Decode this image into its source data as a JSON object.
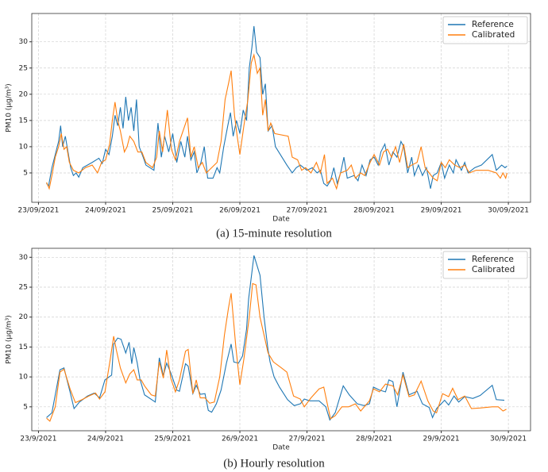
{
  "chart_data": [
    {
      "type": "line",
      "caption": "(a) 15-minute resolution",
      "x_label": "Date",
      "y_label": "PM10 (μg/m³)",
      "xlim": [
        -0.1,
        7.33
      ],
      "ylim": [
        -0.6,
        35.4
      ],
      "xticks": [
        {
          "value": 0,
          "label": "23/09/2021"
        },
        {
          "value": 1,
          "label": "24/09/2021"
        },
        {
          "value": 2,
          "label": "25/09/2021"
        },
        {
          "value": 3,
          "label": "26/09/2021"
        },
        {
          "value": 4,
          "label": "27/09/2021"
        },
        {
          "value": 5,
          "label": "28/09/2021"
        },
        {
          "value": 6,
          "label": "29/09/2021"
        },
        {
          "value": 7,
          "label": "30/09/2021"
        }
      ],
      "yticks": [
        5,
        10,
        15,
        20,
        25,
        30
      ],
      "grid": true,
      "legend": "upper right",
      "series": [
        {
          "name": "Reference",
          "color": "#1f77b4",
          "x": [
            0.12,
            0.15,
            0.2,
            0.25,
            0.3,
            0.33,
            0.36,
            0.4,
            0.44,
            0.48,
            0.52,
            0.56,
            0.6,
            0.66,
            0.8,
            0.9,
            0.95,
            1.0,
            1.05,
            1.1,
            1.14,
            1.18,
            1.22,
            1.26,
            1.3,
            1.34,
            1.38,
            1.42,
            1.46,
            1.5,
            1.56,
            1.6,
            1.72,
            1.78,
            1.83,
            1.88,
            1.94,
            2.0,
            2.06,
            2.12,
            2.18,
            2.22,
            2.27,
            2.32,
            2.36,
            2.42,
            2.47,
            2.52,
            2.6,
            2.66,
            2.7,
            2.76,
            2.82,
            2.86,
            2.9,
            2.95,
            3.0,
            3.05,
            3.1,
            3.14,
            3.18,
            3.21,
            3.25,
            3.3,
            3.34,
            3.38,
            3.42,
            3.48,
            3.53,
            3.7,
            3.78,
            3.84,
            3.9,
            4.0,
            4.08,
            4.15,
            4.2,
            4.25,
            4.3,
            4.35,
            4.4,
            4.45,
            4.5,
            4.55,
            4.6,
            4.7,
            4.76,
            4.82,
            4.88,
            4.94,
            5.0,
            5.06,
            5.1,
            5.16,
            5.22,
            5.28,
            5.34,
            5.4,
            5.44,
            5.5,
            5.56,
            5.6,
            5.66,
            5.72,
            5.78,
            5.84,
            5.88,
            5.94,
            6.0,
            6.05,
            6.12,
            6.18,
            6.22,
            6.3,
            6.35,
            6.4,
            6.5,
            6.6,
            6.76,
            6.82,
            6.9,
            6.95,
            6.98
          ],
          "values": [
            3,
            2.5,
            6,
            8.5,
            11,
            14,
            10,
            12,
            9,
            6,
            4.5,
            5,
            4.2,
            6,
            7,
            7.8,
            6.8,
            9.5,
            8.5,
            12,
            16,
            14,
            17.5,
            13.5,
            19.5,
            15,
            17.5,
            13,
            19,
            10,
            8,
            6.5,
            5.5,
            14.5,
            8,
            12,
            9,
            12.5,
            7,
            11,
            8,
            12,
            7.5,
            9,
            5,
            7,
            10,
            4,
            4,
            6,
            5,
            10,
            14,
            16.5,
            12,
            15,
            12.5,
            17,
            15,
            25,
            29,
            33,
            28,
            27,
            20,
            22,
            13,
            14,
            10,
            6.5,
            5,
            6,
            6.5,
            5.5,
            6,
            5,
            5.5,
            3,
            2.5,
            3.5,
            6,
            3,
            5,
            8,
            4,
            4.5,
            3.5,
            6.5,
            4.5,
            7.5,
            8,
            6.5,
            9,
            10.5,
            6.5,
            9,
            8,
            11,
            10,
            5,
            8,
            4.5,
            6.5,
            4.5,
            6,
            2,
            4.5,
            5,
            7,
            4,
            6.5,
            5,
            7.5,
            5.5,
            7,
            5,
            6,
            6.5,
            8.5,
            5.5,
            6.5,
            6,
            6.3
          ]
        },
        {
          "name": "Calibrated",
          "color": "#ff7f0e",
          "x": [
            0.12,
            0.16,
            0.2,
            0.25,
            0.3,
            0.34,
            0.38,
            0.42,
            0.46,
            0.52,
            0.6,
            0.7,
            0.8,
            0.88,
            0.94,
            1.0,
            1.06,
            1.1,
            1.14,
            1.18,
            1.22,
            1.28,
            1.32,
            1.36,
            1.42,
            1.48,
            1.54,
            1.6,
            1.7,
            1.76,
            1.8,
            1.85,
            1.92,
            1.98,
            2.04,
            2.1,
            2.18,
            2.22,
            2.27,
            2.32,
            2.38,
            2.44,
            2.5,
            2.58,
            2.66,
            2.72,
            2.78,
            2.83,
            2.87,
            2.92,
            2.96,
            3.0,
            3.06,
            3.12,
            3.17,
            3.21,
            3.26,
            3.3,
            3.34,
            3.38,
            3.42,
            3.46,
            3.52,
            3.72,
            3.78,
            3.86,
            3.92,
            3.98,
            4.06,
            4.14,
            4.2,
            4.26,
            4.3,
            4.38,
            4.44,
            4.5,
            4.6,
            4.66,
            4.72,
            4.8,
            4.86,
            4.94,
            5.0,
            5.08,
            5.14,
            5.2,
            5.26,
            5.32,
            5.38,
            5.44,
            5.5,
            5.56,
            5.64,
            5.7,
            5.76,
            5.82,
            5.88,
            5.94,
            6.0,
            6.06,
            6.12,
            6.2,
            6.28,
            6.35,
            6.42,
            6.52,
            6.7,
            6.82,
            6.88,
            6.92,
            6.96,
            6.98
          ],
          "values": [
            3.2,
            2,
            4.5,
            8,
            10,
            12.5,
            9.5,
            10,
            7,
            5.5,
            5,
            6,
            6.5,
            5,
            7,
            7.5,
            10.5,
            15,
            18.5,
            15,
            13,
            9,
            10,
            12,
            11,
            9,
            9,
            7,
            6,
            8,
            13,
            9,
            17,
            9.5,
            7.5,
            11,
            14,
            15.5,
            8,
            10,
            6,
            7,
            5,
            6,
            7,
            11,
            19,
            22,
            24.5,
            16,
            12,
            8.5,
            14,
            19,
            26,
            27.5,
            24,
            25,
            16,
            19,
            13,
            14.5,
            12.5,
            12,
            8,
            7.5,
            5.5,
            6,
            5,
            7,
            5,
            8.5,
            3,
            4,
            2,
            5,
            5.5,
            6.5,
            4,
            5,
            4.5,
            7,
            8.5,
            6.5,
            9,
            9.5,
            8,
            10,
            7,
            10.5,
            6,
            6.5,
            7,
            10,
            6,
            5,
            4,
            3.5,
            7,
            6,
            7.5,
            6.5,
            6,
            6.5,
            5,
            5.5,
            5.5,
            5,
            4,
            5,
            4,
            5
          ]
        }
      ]
    },
    {
      "type": "line",
      "caption": "(b) Hourly resolution",
      "x_label": "Date",
      "y_label": "PM10 (μg/m³)",
      "xlim": [
        -0.1,
        7.33
      ],
      "ylim": [
        1.0,
        31.5
      ],
      "xticks": [
        {
          "value": 0,
          "label": "23/9/2021"
        },
        {
          "value": 1,
          "label": "24/9/2021"
        },
        {
          "value": 2,
          "label": "25/9/2021"
        },
        {
          "value": 3,
          "label": "26/9/2021"
        },
        {
          "value": 4,
          "label": "27/9/2021"
        },
        {
          "value": 5,
          "label": "28/9/2021"
        },
        {
          "value": 6,
          "label": "29/9/2021"
        },
        {
          "value": 7,
          "label": "30/9/2021"
        }
      ],
      "yticks": [
        5,
        10,
        15,
        20,
        25,
        30
      ],
      "grid": true,
      "legend": "upper right",
      "series": [
        {
          "name": "Reference",
          "color": "#1f77b4",
          "x": [
            0.12,
            0.2,
            0.32,
            0.38,
            0.47,
            0.53,
            0.61,
            0.73,
            0.83,
            0.91,
            0.99,
            1.09,
            1.12,
            1.18,
            1.23,
            1.3,
            1.35,
            1.39,
            1.42,
            1.47,
            1.51,
            1.58,
            1.74,
            1.8,
            1.86,
            1.91,
            1.97,
            2.06,
            2.1,
            2.19,
            2.23,
            2.3,
            2.35,
            2.41,
            2.48,
            2.53,
            2.58,
            2.65,
            2.72,
            2.8,
            2.87,
            2.91,
            2.98,
            3.04,
            3.1,
            3.13,
            3.21,
            3.3,
            3.36,
            3.42,
            3.45,
            3.51,
            3.59,
            3.71,
            3.81,
            3.9,
            3.96,
            4.04,
            4.18,
            4.28,
            4.34,
            4.42,
            4.54,
            4.63,
            4.75,
            4.85,
            4.93,
            4.99,
            5.08,
            5.17,
            5.22,
            5.28,
            5.34,
            5.43,
            5.52,
            5.64,
            5.72,
            5.82,
            5.87,
            5.93,
            6.05,
            6.11,
            6.19,
            6.26,
            6.35,
            6.47,
            6.58,
            6.76,
            6.82,
            6.94
          ],
          "values": [
            3.2,
            4,
            11.2,
            11.5,
            7.5,
            4.7,
            5.8,
            6.8,
            7.3,
            6.5,
            9.5,
            10.3,
            15.5,
            16.5,
            16.3,
            14,
            15.8,
            12.2,
            14.9,
            12.4,
            9.7,
            7,
            5.8,
            13.2,
            10.2,
            12.3,
            10.7,
            7.8,
            7.6,
            12.2,
            11.8,
            7.2,
            8.6,
            7.1,
            7.2,
            4.4,
            4.1,
            5.5,
            7.8,
            12.3,
            15.5,
            12.5,
            12.3,
            13.5,
            18,
            23,
            30.3,
            27,
            20,
            14.5,
            12.5,
            10,
            8.3,
            6.2,
            5.2,
            5.5,
            6.3,
            6,
            6,
            5,
            2.8,
            4,
            8.5,
            7,
            5.5,
            5.2,
            5.5,
            8.3,
            7.8,
            7.5,
            9.5,
            9.2,
            5,
            10.8,
            7,
            7.6,
            5.5,
            4.9,
            3.2,
            4.7,
            6.1,
            5.3,
            6.8,
            5.8,
            6.7,
            6.4,
            6.9,
            8.6,
            6.2,
            6.1
          ]
        },
        {
          "name": "Calibrated",
          "color": "#ff7f0e",
          "x": [
            0.12,
            0.17,
            0.25,
            0.32,
            0.38,
            0.47,
            0.55,
            0.65,
            0.75,
            0.85,
            0.91,
            0.99,
            1.07,
            1.12,
            1.16,
            1.22,
            1.3,
            1.36,
            1.42,
            1.47,
            1.53,
            1.58,
            1.68,
            1.74,
            1.8,
            1.86,
            1.91,
            1.97,
            2.04,
            2.1,
            2.19,
            2.23,
            2.3,
            2.35,
            2.41,
            2.48,
            2.55,
            2.62,
            2.7,
            2.77,
            2.83,
            2.87,
            2.94,
            3.0,
            3.06,
            3.14,
            3.19,
            3.24,
            3.3,
            3.36,
            3.42,
            3.5,
            3.62,
            3.7,
            3.8,
            3.9,
            3.96,
            4.06,
            4.18,
            4.25,
            4.35,
            4.42,
            4.52,
            4.62,
            4.72,
            4.8,
            4.93,
            4.99,
            5.08,
            5.17,
            5.28,
            5.35,
            5.43,
            5.52,
            5.6,
            5.7,
            5.8,
            5.88,
            5.93,
            6.02,
            6.11,
            6.17,
            6.25,
            6.35,
            6.45,
            6.58,
            6.76,
            6.85,
            6.92,
            6.97
          ],
          "values": [
            3.1,
            2.6,
            5,
            10.8,
            11.3,
            8,
            5.7,
            6.2,
            6.8,
            7.3,
            6.3,
            7.5,
            13,
            16.8,
            14.5,
            11.5,
            9,
            10.5,
            11.2,
            9.5,
            9.5,
            8.5,
            7,
            6.8,
            12.5,
            9.8,
            14.5,
            9.8,
            7.5,
            9.5,
            14.3,
            14.6,
            7.2,
            9.5,
            6.5,
            6.5,
            5.6,
            5.8,
            10,
            17,
            21.5,
            24,
            15,
            8.7,
            13,
            20,
            25.6,
            25.4,
            20,
            17,
            14,
            12.5,
            11.5,
            10.8,
            6.8,
            6.3,
            5,
            6.5,
            8,
            8.3,
            3,
            3.5,
            5,
            5,
            5.5,
            4.3,
            6,
            8,
            7.5,
            8.8,
            8.5,
            7,
            10.3,
            6.7,
            7,
            9.3,
            6,
            4.3,
            4,
            7.2,
            6.7,
            8.1,
            6.2,
            6.8,
            4.7,
            4.8,
            5,
            5,
            4.3,
            4.6
          ]
        }
      ]
    }
  ]
}
